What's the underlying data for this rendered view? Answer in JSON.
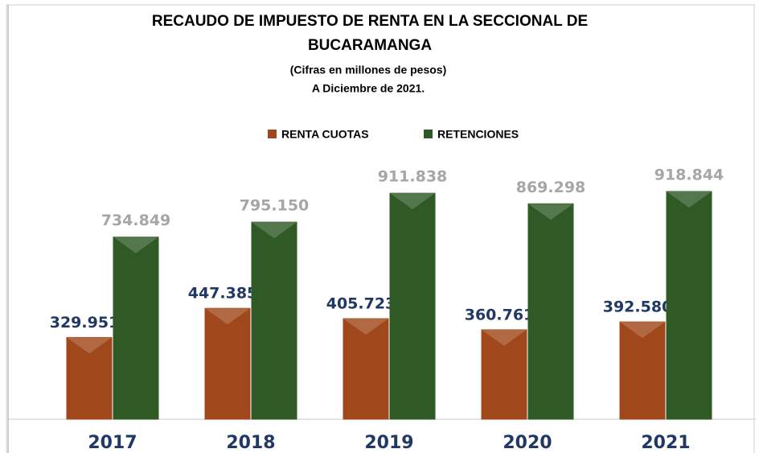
{
  "chart_data": {
    "type": "bar",
    "title": "RECAUDO DE IMPUESTO DE RENTA EN LA SECCIONAL DE BUCARAMANGA",
    "subtitle": [
      "(Cifras  en millones de pesos)",
      "A Diciembre  de 2021."
    ],
    "categories": [
      "2017",
      "2018",
      "2019",
      "2020",
      "2021"
    ],
    "series": [
      {
        "name": "RENTA CUOTAS",
        "color": "#a0481c",
        "values": [
          329951,
          447385,
          405723,
          360761,
          392580
        ],
        "value_labels": [
          "329.951",
          "447.385",
          "405.723",
          "360.761",
          "392.580"
        ]
      },
      {
        "name": "RETENCIONES",
        "color": "#2f5a26",
        "values": [
          734849,
          795150,
          911838,
          869298,
          918844
        ],
        "value_labels": [
          "734.849",
          "795.150",
          "911.838",
          "869.298",
          "918.844"
        ]
      }
    ],
    "legend": "top"
  }
}
